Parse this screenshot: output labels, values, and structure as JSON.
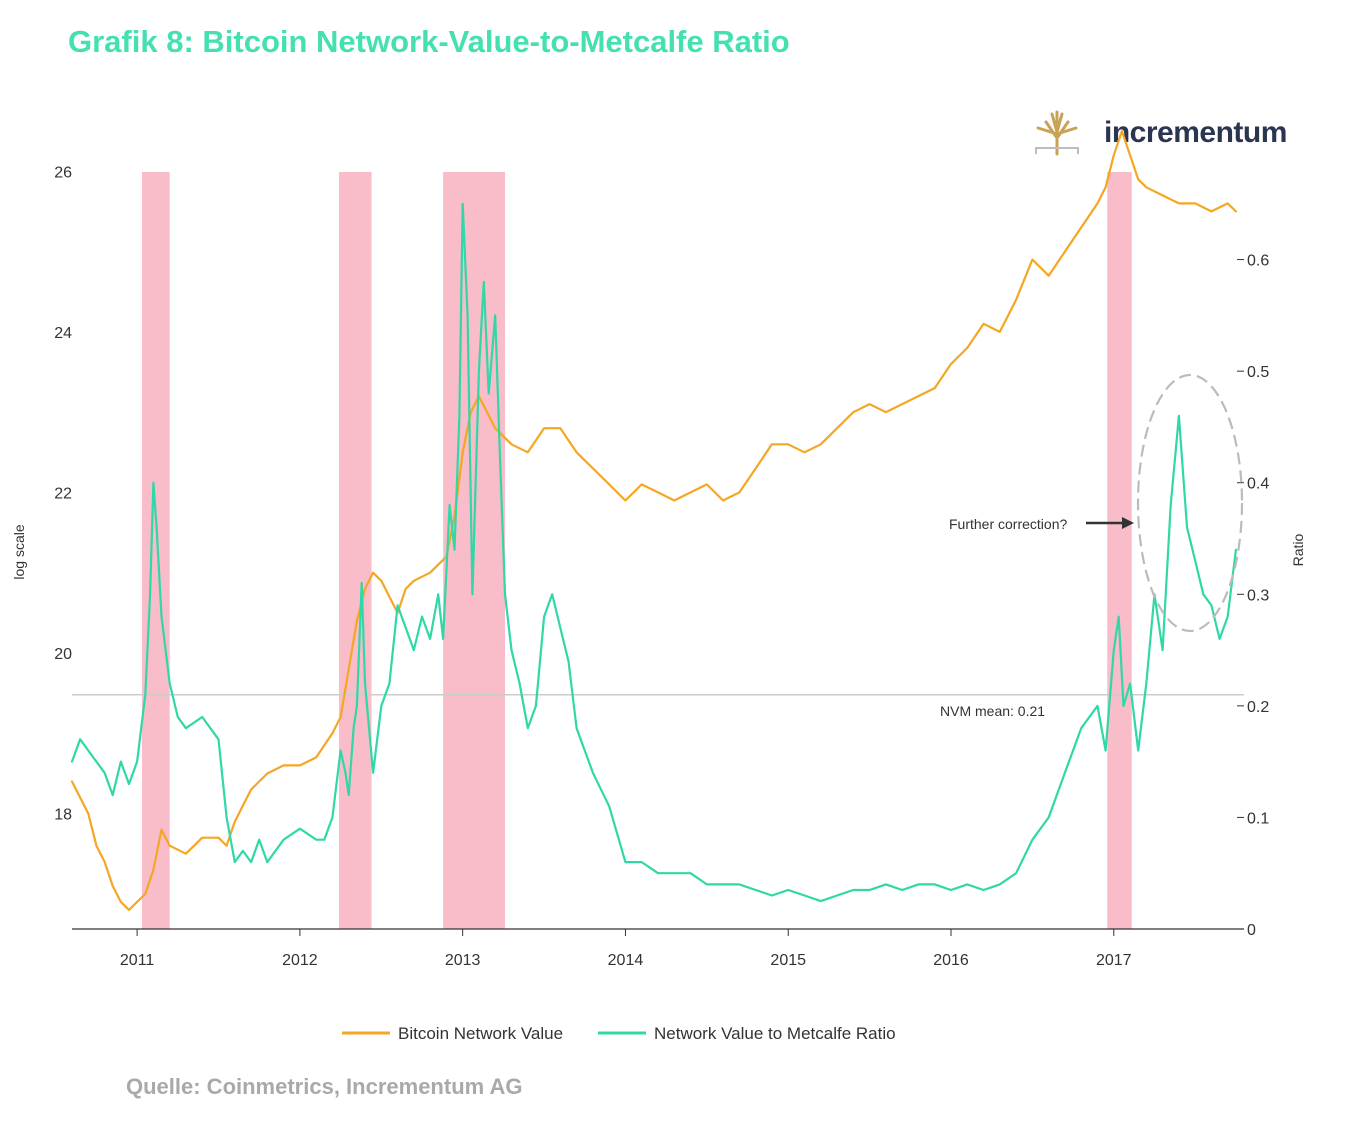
{
  "page": {
    "title": "Grafik 8: Bitcoin Network-Value-to-Metcalfe Ratio",
    "brand": "incrementum",
    "source": "Quelle: Coinmetrics, Incrementum AG"
  },
  "chart_data": {
    "type": "line",
    "title": "Grafik 8: Bitcoin Network-Value-to-Metcalfe Ratio",
    "xlabel": "",
    "ylabel_left": "log scale",
    "ylabel_right": "Ratio",
    "x_range": [
      2010.6,
      2017.8
    ],
    "y_left_range": [
      16.6,
      27.0
    ],
    "y_right_range": [
      0,
      0.7
    ],
    "x_ticks": [
      "2011",
      "2012",
      "2013",
      "2014",
      "2015",
      "2016",
      "2017"
    ],
    "y_left_ticks": [
      "18",
      "20",
      "22",
      "24",
      "26"
    ],
    "y_right_ticks": [
      "0",
      "0.1",
      "0.2",
      "0.3",
      "0.4",
      "0.5",
      "0.6"
    ],
    "grid": false,
    "legend_position": "bottom",
    "colors": {
      "network_value": "#f5a623",
      "nvm": "#2fd8a6",
      "shade": "#f7a6b7",
      "mean": "#cccccc"
    },
    "shaded_periods": [
      [
        2011.03,
        2011.2
      ],
      [
        2012.24,
        2012.44
      ],
      [
        2012.88,
        2013.26
      ],
      [
        2016.96,
        2017.11
      ]
    ],
    "mean_line": {
      "value": 0.21,
      "label": "NVM mean: 0.21"
    },
    "annotation": {
      "text": "Further correction?"
    },
    "series": [
      {
        "name": "Bitcoin Network Value",
        "axis": "left",
        "x": [
          2010.6,
          2010.65,
          2010.7,
          2010.75,
          2010.8,
          2010.85,
          2010.9,
          2010.95,
          2011.0,
          2011.05,
          2011.1,
          2011.15,
          2011.2,
          2011.3,
          2011.4,
          2011.5,
          2011.55,
          2011.6,
          2011.65,
          2011.7,
          2011.8,
          2011.9,
          2012.0,
          2012.1,
          2012.2,
          2012.25,
          2012.3,
          2012.35,
          2012.4,
          2012.45,
          2012.5,
          2012.6,
          2012.65,
          2012.7,
          2012.8,
          2012.85,
          2012.9,
          2012.95,
          2013.0,
          2013.05,
          2013.1,
          2013.15,
          2013.2,
          2013.3,
          2013.4,
          2013.5,
          2013.6,
          2013.7,
          2013.8,
          2013.9,
          2014.0,
          2014.05,
          2014.1,
          2014.2,
          2014.3,
          2014.4,
          2014.5,
          2014.6,
          2014.7,
          2014.8,
          2014.9,
          2015.0,
          2015.1,
          2015.2,
          2015.3,
          2015.4,
          2015.5,
          2015.6,
          2015.7,
          2015.8,
          2015.9,
          2016.0,
          2016.1,
          2016.2,
          2016.3,
          2016.4,
          2016.5,
          2016.6,
          2016.7,
          2016.8,
          2016.9,
          2016.95,
          2017.0,
          2017.05,
          2017.1,
          2017.15,
          2017.2,
          2017.3,
          2017.4,
          2017.5,
          2017.6,
          2017.7,
          2017.75
        ],
        "values": [
          18.4,
          18.2,
          18.0,
          17.6,
          17.4,
          17.1,
          16.9,
          16.8,
          16.9,
          17.0,
          17.3,
          17.8,
          17.6,
          17.5,
          17.7,
          17.7,
          17.6,
          17.9,
          18.1,
          18.3,
          18.5,
          18.6,
          18.6,
          18.7,
          19.0,
          19.2,
          19.8,
          20.4,
          20.8,
          21.0,
          20.9,
          20.5,
          20.8,
          20.9,
          21.0,
          21.1,
          21.2,
          21.7,
          22.5,
          23.0,
          23.2,
          23.0,
          22.8,
          22.6,
          22.5,
          22.8,
          22.8,
          22.5,
          22.3,
          22.1,
          21.9,
          22.0,
          22.1,
          22.0,
          21.9,
          22.0,
          22.1,
          21.9,
          22.0,
          22.3,
          22.6,
          22.6,
          22.5,
          22.6,
          22.8,
          23.0,
          23.1,
          23.0,
          23.1,
          23.2,
          23.3,
          23.6,
          23.8,
          24.1,
          24.0,
          24.4,
          24.9,
          24.7,
          25.0,
          25.3,
          25.6,
          25.8,
          26.2,
          26.5,
          26.2,
          25.9,
          25.8,
          25.7,
          25.6,
          25.6,
          25.5,
          25.6,
          25.5
        ]
      },
      {
        "name": "Network Value to Metcalfe Ratio",
        "axis": "right",
        "x": [
          2010.6,
          2010.65,
          2010.7,
          2010.75,
          2010.8,
          2010.85,
          2010.9,
          2010.95,
          2011.0,
          2011.05,
          2011.08,
          2011.1,
          2011.12,
          2011.15,
          2011.2,
          2011.25,
          2011.3,
          2011.4,
          2011.5,
          2011.55,
          2011.6,
          2011.65,
          2011.7,
          2011.75,
          2011.8,
          2011.9,
          2012.0,
          2012.1,
          2012.15,
          2012.2,
          2012.25,
          2012.28,
          2012.3,
          2012.33,
          2012.35,
          2012.38,
          2012.4,
          2012.45,
          2012.5,
          2012.55,
          2012.6,
          2012.7,
          2012.75,
          2012.8,
          2012.85,
          2012.88,
          2012.92,
          2012.95,
          2012.98,
          2013.0,
          2013.03,
          2013.06,
          2013.1,
          2013.13,
          2013.16,
          2013.2,
          2013.23,
          2013.26,
          2013.3,
          2013.35,
          2013.4,
          2013.45,
          2013.5,
          2013.55,
          2013.6,
          2013.65,
          2013.7,
          2013.8,
          2013.9,
          2014.0,
          2014.1,
          2014.2,
          2014.3,
          2014.4,
          2014.5,
          2014.6,
          2014.7,
          2014.8,
          2014.9,
          2015.0,
          2015.1,
          2015.2,
          2015.3,
          2015.4,
          2015.5,
          2015.6,
          2015.7,
          2015.8,
          2015.9,
          2016.0,
          2016.1,
          2016.2,
          2016.3,
          2016.4,
          2016.5,
          2016.6,
          2016.7,
          2016.8,
          2016.9,
          2016.95,
          2017.0,
          2017.03,
          2017.06,
          2017.1,
          2017.15,
          2017.2,
          2017.25,
          2017.3,
          2017.35,
          2017.4,
          2017.45,
          2017.5,
          2017.55,
          2017.6,
          2017.65,
          2017.7,
          2017.75
        ],
        "values": [
          0.15,
          0.17,
          0.16,
          0.15,
          0.14,
          0.12,
          0.15,
          0.13,
          0.15,
          0.21,
          0.3,
          0.4,
          0.36,
          0.28,
          0.22,
          0.19,
          0.18,
          0.19,
          0.17,
          0.1,
          0.06,
          0.07,
          0.06,
          0.08,
          0.06,
          0.08,
          0.09,
          0.08,
          0.08,
          0.1,
          0.16,
          0.14,
          0.12,
          0.18,
          0.2,
          0.31,
          0.22,
          0.14,
          0.2,
          0.22,
          0.29,
          0.25,
          0.28,
          0.26,
          0.3,
          0.26,
          0.38,
          0.34,
          0.46,
          0.65,
          0.55,
          0.3,
          0.5,
          0.58,
          0.48,
          0.55,
          0.42,
          0.3,
          0.25,
          0.22,
          0.18,
          0.2,
          0.28,
          0.3,
          0.27,
          0.24,
          0.18,
          0.14,
          0.11,
          0.06,
          0.06,
          0.05,
          0.05,
          0.05,
          0.04,
          0.04,
          0.04,
          0.035,
          0.03,
          0.035,
          0.03,
          0.025,
          0.03,
          0.035,
          0.035,
          0.04,
          0.035,
          0.04,
          0.04,
          0.035,
          0.04,
          0.035,
          0.04,
          0.05,
          0.08,
          0.1,
          0.14,
          0.18,
          0.2,
          0.16,
          0.25,
          0.28,
          0.2,
          0.22,
          0.16,
          0.22,
          0.3,
          0.25,
          0.38,
          0.46,
          0.36,
          0.33,
          0.3,
          0.29,
          0.26,
          0.28,
          0.34
        ]
      }
    ]
  }
}
